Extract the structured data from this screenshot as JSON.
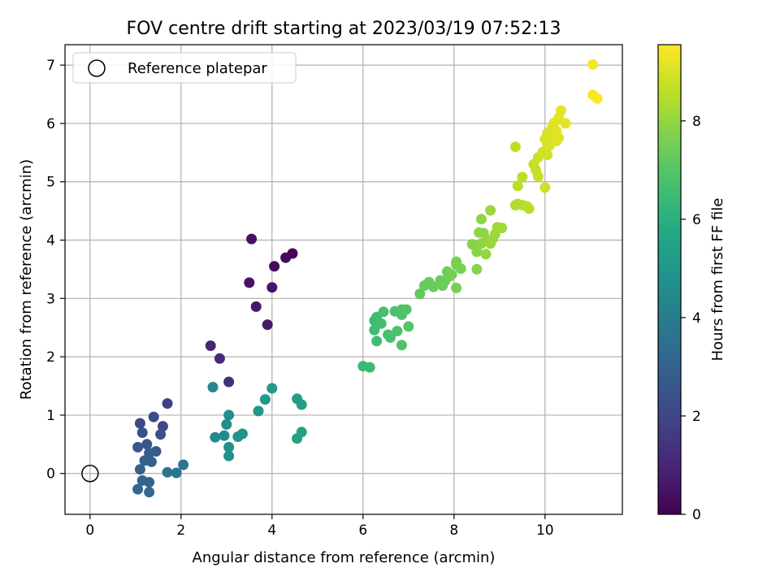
{
  "chart_data": {
    "type": "scatter",
    "title": "FOV centre drift starting at 2023/03/19 07:52:13",
    "xlabel": "Angular distance from reference (arcmin)",
    "ylabel": "Rotation from reference (arcmin)",
    "xlim": [
      -0.55,
      11.7
    ],
    "ylim": [
      -0.7,
      7.35
    ],
    "xticks": [
      0,
      2,
      4,
      6,
      8,
      10
    ],
    "yticks": [
      0,
      1,
      2,
      3,
      4,
      5,
      6,
      7
    ],
    "grid": true,
    "legend": {
      "placement": "top-left",
      "entries": [
        "Reference platepar"
      ]
    },
    "reference_point": {
      "x": 0,
      "y": 0
    },
    "colorbar": {
      "label": "Hours from first FF file",
      "range": [
        0,
        9.55
      ],
      "ticks": [
        0,
        2,
        4,
        6,
        8
      ],
      "colormap": "viridis"
    },
    "points": [
      {
        "x": 4.45,
        "y": 3.77,
        "c": 0.15
      },
      {
        "x": 4.3,
        "y": 3.7,
        "c": 0.2
      },
      {
        "x": 4.05,
        "y": 3.55,
        "c": 0.3
      },
      {
        "x": 3.55,
        "y": 4.02,
        "c": 0.45
      },
      {
        "x": 3.5,
        "y": 3.27,
        "c": 0.5
      },
      {
        "x": 4.0,
        "y": 3.19,
        "c": 0.55
      },
      {
        "x": 3.65,
        "y": 2.86,
        "c": 0.6
      },
      {
        "x": 3.9,
        "y": 2.55,
        "c": 0.7
      },
      {
        "x": 2.65,
        "y": 2.19,
        "c": 1.0
      },
      {
        "x": 2.85,
        "y": 1.97,
        "c": 1.15
      },
      {
        "x": 3.05,
        "y": 1.57,
        "c": 1.3
      },
      {
        "x": 1.7,
        "y": 1.2,
        "c": 1.8
      },
      {
        "x": 1.6,
        "y": 0.81,
        "c": 2.0
      },
      {
        "x": 1.1,
        "y": 0.86,
        "c": 2.1
      },
      {
        "x": 1.4,
        "y": 0.97,
        "c": 2.2
      },
      {
        "x": 1.55,
        "y": 0.67,
        "c": 2.3
      },
      {
        "x": 1.15,
        "y": 0.7,
        "c": 2.35
      },
      {
        "x": 1.05,
        "y": 0.45,
        "c": 2.5
      },
      {
        "x": 1.25,
        "y": 0.5,
        "c": 2.6
      },
      {
        "x": 1.45,
        "y": 0.38,
        "c": 2.7
      },
      {
        "x": 1.3,
        "y": 0.35,
        "c": 2.75
      },
      {
        "x": 1.2,
        "y": 0.22,
        "c": 2.85
      },
      {
        "x": 1.35,
        "y": 0.2,
        "c": 2.9
      },
      {
        "x": 1.1,
        "y": 0.07,
        "c": 3.0
      },
      {
        "x": 1.15,
        "y": -0.12,
        "c": 3.1
      },
      {
        "x": 1.3,
        "y": -0.15,
        "c": 3.15
      },
      {
        "x": 1.05,
        "y": -0.27,
        "c": 3.2
      },
      {
        "x": 1.3,
        "y": -0.32,
        "c": 3.25
      },
      {
        "x": 1.7,
        "y": 0.02,
        "c": 3.6
      },
      {
        "x": 1.9,
        "y": 0.01,
        "c": 3.7
      },
      {
        "x": 2.05,
        "y": 0.15,
        "c": 3.8
      },
      {
        "x": 2.7,
        "y": 1.48,
        "c": 4.4
      },
      {
        "x": 2.75,
        "y": 0.62,
        "c": 4.5
      },
      {
        "x": 2.95,
        "y": 0.65,
        "c": 4.55
      },
      {
        "x": 3.0,
        "y": 0.84,
        "c": 4.6
      },
      {
        "x": 3.05,
        "y": 1.0,
        "c": 4.65
      },
      {
        "x": 3.05,
        "y": 0.45,
        "c": 4.7
      },
      {
        "x": 3.05,
        "y": 0.3,
        "c": 4.75
      },
      {
        "x": 3.25,
        "y": 0.63,
        "c": 4.8
      },
      {
        "x": 3.35,
        "y": 0.68,
        "c": 4.85
      },
      {
        "x": 3.7,
        "y": 1.07,
        "c": 5.0
      },
      {
        "x": 3.85,
        "y": 1.27,
        "c": 5.1
      },
      {
        "x": 4.0,
        "y": 1.46,
        "c": 5.2
      },
      {
        "x": 4.55,
        "y": 1.28,
        "c": 5.3
      },
      {
        "x": 4.65,
        "y": 1.18,
        "c": 5.35
      },
      {
        "x": 4.55,
        "y": 0.6,
        "c": 5.45
      },
      {
        "x": 4.65,
        "y": 0.71,
        "c": 5.5
      },
      {
        "x": 6.0,
        "y": 1.84,
        "c": 6.4
      },
      {
        "x": 6.15,
        "y": 1.82,
        "c": 6.45
      },
      {
        "x": 6.25,
        "y": 2.62,
        "c": 6.5
      },
      {
        "x": 6.3,
        "y": 2.68,
        "c": 6.55
      },
      {
        "x": 6.25,
        "y": 2.46,
        "c": 6.55
      },
      {
        "x": 6.3,
        "y": 2.27,
        "c": 6.6
      },
      {
        "x": 6.4,
        "y": 2.57,
        "c": 6.65
      },
      {
        "x": 6.45,
        "y": 2.77,
        "c": 6.7
      },
      {
        "x": 6.55,
        "y": 2.38,
        "c": 6.7
      },
      {
        "x": 6.6,
        "y": 2.33,
        "c": 6.75
      },
      {
        "x": 6.7,
        "y": 2.78,
        "c": 6.8
      },
      {
        "x": 6.75,
        "y": 2.44,
        "c": 6.8
      },
      {
        "x": 6.85,
        "y": 2.72,
        "c": 6.85
      },
      {
        "x": 6.85,
        "y": 2.2,
        "c": 6.85
      },
      {
        "x": 6.95,
        "y": 2.81,
        "c": 6.9
      },
      {
        "x": 6.85,
        "y": 2.81,
        "c": 6.9
      },
      {
        "x": 7.0,
        "y": 2.52,
        "c": 6.95
      },
      {
        "x": 7.25,
        "y": 3.08,
        "c": 7.2
      },
      {
        "x": 7.35,
        "y": 3.22,
        "c": 7.25
      },
      {
        "x": 7.45,
        "y": 3.28,
        "c": 7.3
      },
      {
        "x": 7.55,
        "y": 3.2,
        "c": 7.3
      },
      {
        "x": 7.7,
        "y": 3.31,
        "c": 7.35
      },
      {
        "x": 7.75,
        "y": 3.22,
        "c": 7.4
      },
      {
        "x": 7.8,
        "y": 3.3,
        "c": 7.4
      },
      {
        "x": 7.85,
        "y": 3.46,
        "c": 7.45
      },
      {
        "x": 7.9,
        "y": 3.38,
        "c": 7.5
      },
      {
        "x": 7.95,
        "y": 3.41,
        "c": 7.5
      },
      {
        "x": 8.05,
        "y": 3.58,
        "c": 7.55
      },
      {
        "x": 8.05,
        "y": 3.63,
        "c": 7.6
      },
      {
        "x": 8.05,
        "y": 3.18,
        "c": 7.6
      },
      {
        "x": 8.15,
        "y": 3.51,
        "c": 7.65
      },
      {
        "x": 8.4,
        "y": 3.93,
        "c": 7.8
      },
      {
        "x": 8.5,
        "y": 3.8,
        "c": 7.85
      },
      {
        "x": 8.5,
        "y": 3.5,
        "c": 7.85
      },
      {
        "x": 8.55,
        "y": 4.13,
        "c": 7.9
      },
      {
        "x": 8.6,
        "y": 3.94,
        "c": 7.9
      },
      {
        "x": 8.65,
        "y": 4.12,
        "c": 7.95
      },
      {
        "x": 8.6,
        "y": 4.36,
        "c": 7.95
      },
      {
        "x": 8.7,
        "y": 3.76,
        "c": 8.0
      },
      {
        "x": 8.75,
        "y": 4.0,
        "c": 8.0
      },
      {
        "x": 8.8,
        "y": 3.94,
        "c": 8.05
      },
      {
        "x": 8.85,
        "y": 4.02,
        "c": 8.05
      },
      {
        "x": 8.8,
        "y": 4.51,
        "c": 8.1
      },
      {
        "x": 8.9,
        "y": 4.1,
        "c": 8.1
      },
      {
        "x": 8.95,
        "y": 4.22,
        "c": 8.15
      },
      {
        "x": 9.05,
        "y": 4.21,
        "c": 8.15
      },
      {
        "x": 9.35,
        "y": 4.6,
        "c": 8.4
      },
      {
        "x": 9.4,
        "y": 4.62,
        "c": 8.4
      },
      {
        "x": 9.5,
        "y": 4.6,
        "c": 8.45
      },
      {
        "x": 9.6,
        "y": 4.58,
        "c": 8.5
      },
      {
        "x": 9.65,
        "y": 4.54,
        "c": 8.5
      },
      {
        "x": 9.4,
        "y": 4.93,
        "c": 8.55
      },
      {
        "x": 9.5,
        "y": 5.08,
        "c": 8.6
      },
      {
        "x": 9.35,
        "y": 5.6,
        "c": 8.6
      },
      {
        "x": 9.75,
        "y": 5.3,
        "c": 8.7
      },
      {
        "x": 9.8,
        "y": 5.2,
        "c": 8.7
      },
      {
        "x": 9.85,
        "y": 5.09,
        "c": 8.75
      },
      {
        "x": 9.85,
        "y": 5.42,
        "c": 8.8
      },
      {
        "x": 9.95,
        "y": 5.51,
        "c": 8.85
      },
      {
        "x": 10.0,
        "y": 4.9,
        "c": 8.85
      },
      {
        "x": 10.05,
        "y": 5.46,
        "c": 8.9
      },
      {
        "x": 10.05,
        "y": 5.65,
        "c": 8.9
      },
      {
        "x": 10.0,
        "y": 5.73,
        "c": 8.95
      },
      {
        "x": 10.05,
        "y": 5.83,
        "c": 8.95
      },
      {
        "x": 10.1,
        "y": 5.72,
        "c": 9.0
      },
      {
        "x": 10.1,
        "y": 5.62,
        "c": 9.0
      },
      {
        "x": 10.15,
        "y": 5.77,
        "c": 9.0
      },
      {
        "x": 10.15,
        "y": 5.92,
        "c": 9.05
      },
      {
        "x": 10.2,
        "y": 5.8,
        "c": 9.05
      },
      {
        "x": 10.25,
        "y": 5.7,
        "c": 9.05
      },
      {
        "x": 10.25,
        "y": 5.87,
        "c": 9.1
      },
      {
        "x": 10.3,
        "y": 5.75,
        "c": 9.1
      },
      {
        "x": 10.2,
        "y": 6.01,
        "c": 9.1
      },
      {
        "x": 10.3,
        "y": 6.1,
        "c": 9.15
      },
      {
        "x": 10.35,
        "y": 6.22,
        "c": 9.15
      },
      {
        "x": 10.45,
        "y": 6.0,
        "c": 9.2
      },
      {
        "x": 11.05,
        "y": 7.01,
        "c": 9.4
      },
      {
        "x": 11.05,
        "y": 6.49,
        "c": 9.45
      },
      {
        "x": 11.15,
        "y": 6.43,
        "c": 9.5
      }
    ]
  }
}
